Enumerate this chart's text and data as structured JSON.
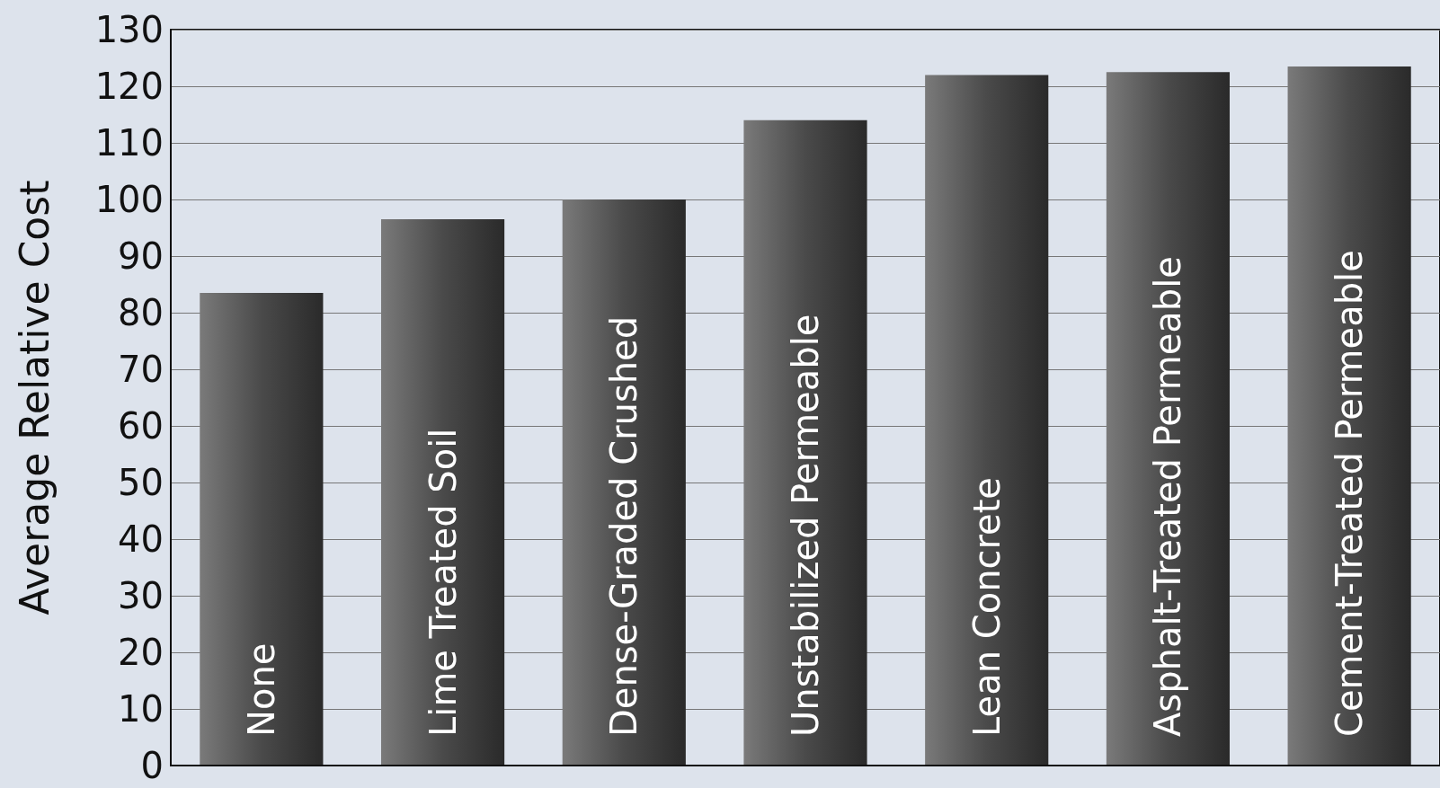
{
  "chart_data": {
    "type": "bar",
    "ylabel": "Average Relative Cost",
    "categories": [
      "None",
      "Lime Treated Soil",
      "Dense-Graded Crushed",
      "Unstabilized Permeable",
      "Lean Concrete",
      "Asphalt-Treated Permeable",
      "Cement-Treated Permeable"
    ],
    "values": [
      83.5,
      96.5,
      100,
      114,
      122,
      122.5,
      123.5
    ],
    "color": "#4a4a4a",
    "ylim": [
      0,
      130
    ],
    "yticks": [
      0,
      10,
      20,
      30,
      40,
      50,
      60,
      70,
      80,
      90,
      100,
      110,
      120,
      130
    ],
    "grid": "y"
  }
}
